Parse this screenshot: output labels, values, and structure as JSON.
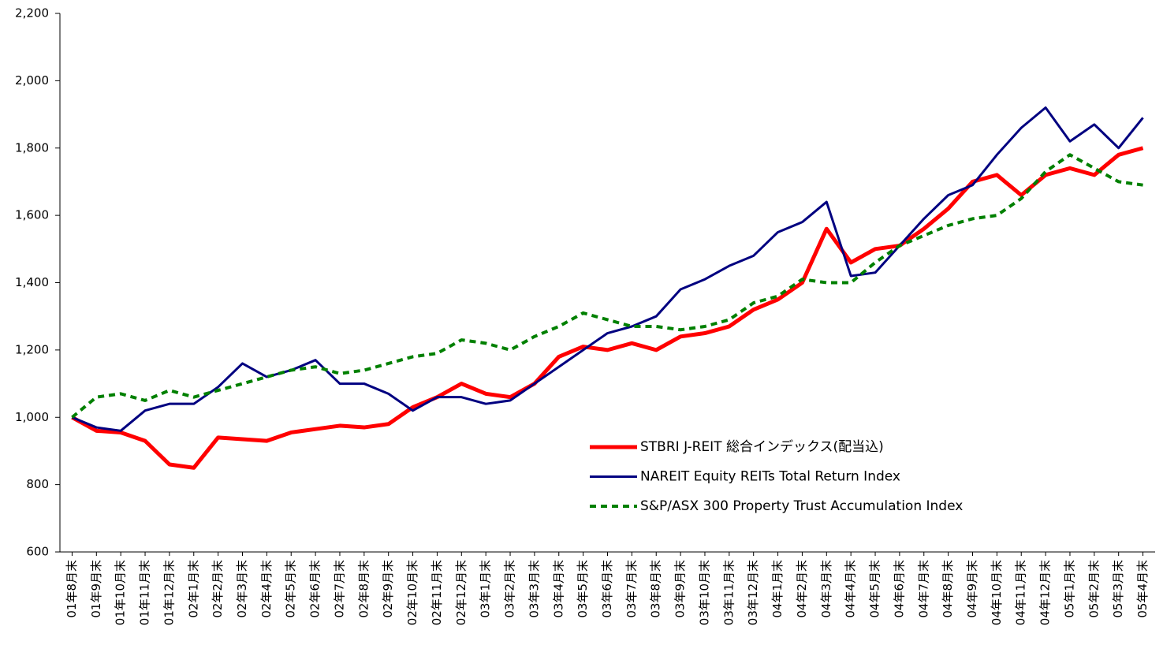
{
  "chart_data": {
    "type": "line",
    "categories": [
      "01年8月末",
      "01年9月末",
      "01年10月末",
      "01年11月末",
      "01年12月末",
      "02年1月末",
      "02年2月末",
      "02年3月末",
      "02年4月末",
      "02年5月末",
      "02年6月末",
      "02年7月末",
      "02年8月末",
      "02年9月末",
      "02年10月末",
      "02年11月末",
      "02年12月末",
      "03年1月末",
      "03年2月末",
      "03年3月末",
      "03年4月末",
      "03年5月末",
      "03年6月末",
      "03年7月末",
      "03年8月末",
      "03年9月末",
      "03年10月末",
      "03年11月末",
      "03年12月末",
      "04年1月末",
      "04年2月末",
      "04年3月末",
      "04年4月末",
      "04年5月末",
      "04年6月末",
      "04年7月末",
      "04年8月末",
      "04年9月末",
      "04年10月末",
      "04年11月末",
      "04年12月末",
      "05年1月末",
      "05年2月末",
      "05年3月末",
      "05年4月末"
    ],
    "series": [
      {
        "name": "STBRI J-REIT 総合インデックス(配当込)",
        "color": "#ff0000",
        "dash": "solid",
        "width": 5,
        "values": [
          1000,
          960,
          955,
          930,
          860,
          850,
          940,
          935,
          930,
          955,
          965,
          975,
          970,
          980,
          1030,
          1060,
          1100,
          1070,
          1060,
          1100,
          1180,
          1210,
          1200,
          1220,
          1200,
          1240,
          1250,
          1270,
          1320,
          1350,
          1400,
          1560,
          1460,
          1500,
          1510,
          1560,
          1620,
          1700,
          1720,
          1660,
          1720,
          1740,
          1720,
          1780,
          1800
        ]
      },
      {
        "name": "NAREIT Equity REITs Total Return Index",
        "color": "#000080",
        "dash": "solid",
        "width": 3,
        "values": [
          1000,
          970,
          960,
          1020,
          1040,
          1040,
          1090,
          1160,
          1120,
          1140,
          1170,
          1100,
          1100,
          1070,
          1020,
          1060,
          1060,
          1040,
          1050,
          1100,
          1150,
          1200,
          1250,
          1270,
          1300,
          1380,
          1410,
          1450,
          1480,
          1550,
          1580,
          1640,
          1420,
          1430,
          1510,
          1590,
          1660,
          1690,
          1780,
          1860,
          1920,
          1820,
          1870,
          1800,
          1890
        ]
      },
      {
        "name": "S&P/ASX 300 Property Trust Accumulation Index",
        "color": "#008000",
        "dash": "dashed",
        "width": 4,
        "values": [
          1000,
          1060,
          1070,
          1050,
          1080,
          1060,
          1080,
          1100,
          1120,
          1140,
          1150,
          1130,
          1140,
          1160,
          1180,
          1190,
          1230,
          1220,
          1200,
          1240,
          1270,
          1310,
          1290,
          1270,
          1270,
          1260,
          1270,
          1290,
          1340,
          1360,
          1410,
          1400,
          1400,
          1460,
          1510,
          1540,
          1570,
          1590,
          1600,
          1650,
          1730,
          1780,
          1740,
          1700,
          1690
        ]
      }
    ],
    "ylim": [
      600,
      2200
    ],
    "yticks": [
      600,
      800,
      {
        "value": 1000,
        "label": "1,000"
      },
      {
        "value": 1200,
        "label": "1,200"
      },
      {
        "value": 1400,
        "label": "1,400"
      },
      {
        "value": 1600,
        "label": "1,600"
      },
      {
        "value": 1800,
        "label": "1,800"
      },
      {
        "value": 2000,
        "label": "2,000"
      },
      {
        "value": 2200,
        "label": "2,200"
      }
    ],
    "grid": false
  }
}
